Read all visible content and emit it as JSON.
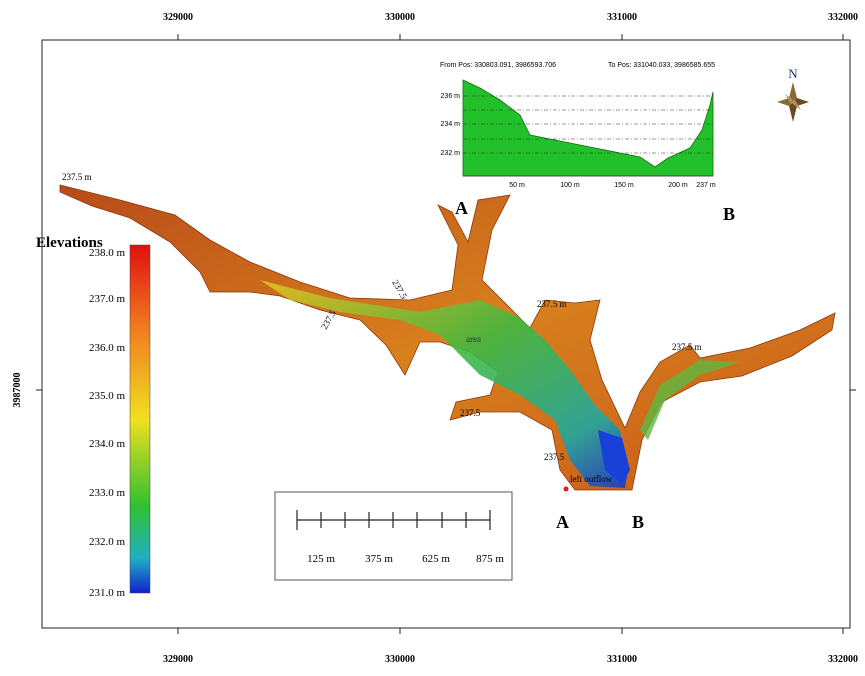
{
  "coordinates": {
    "x_top": [
      "329000",
      "330000",
      "331000",
      "332000"
    ],
    "x_bottom": [
      "329000",
      "330000",
      "331000",
      "332000"
    ],
    "y_left": [
      "3987000"
    ]
  },
  "legend": {
    "title": "Elevations",
    "labels": [
      "238.0 m",
      "237.0 m",
      "236.0 m",
      "235.0 m",
      "234.0 m",
      "233.0 m",
      "232.0 m",
      "231.0 m"
    ]
  },
  "profile": {
    "from": "From Pos: 330803.091, 3986593.706",
    "to": "To Pos: 331040.033, 3986585.655",
    "y_labels": [
      "236 m",
      "234 m",
      "232 m"
    ],
    "x_labels": [
      "50 m",
      "100 m",
      "150 m",
      "200 m",
      "237 m"
    ],
    "start": "A",
    "end": "B"
  },
  "map_labels": {
    "contours": [
      "237.5 m",
      "237.5",
      "237.5",
      "237.5 m",
      "237.5 m",
      "237.5",
      "237.5"
    ],
    "area": "area",
    "outflow": "left outflow",
    "section_start": "A",
    "section_end": "B",
    "north": "N"
  },
  "scale_bar": {
    "labels": [
      "125 m",
      "375 m",
      "625 m",
      "875 m"
    ]
  }
}
